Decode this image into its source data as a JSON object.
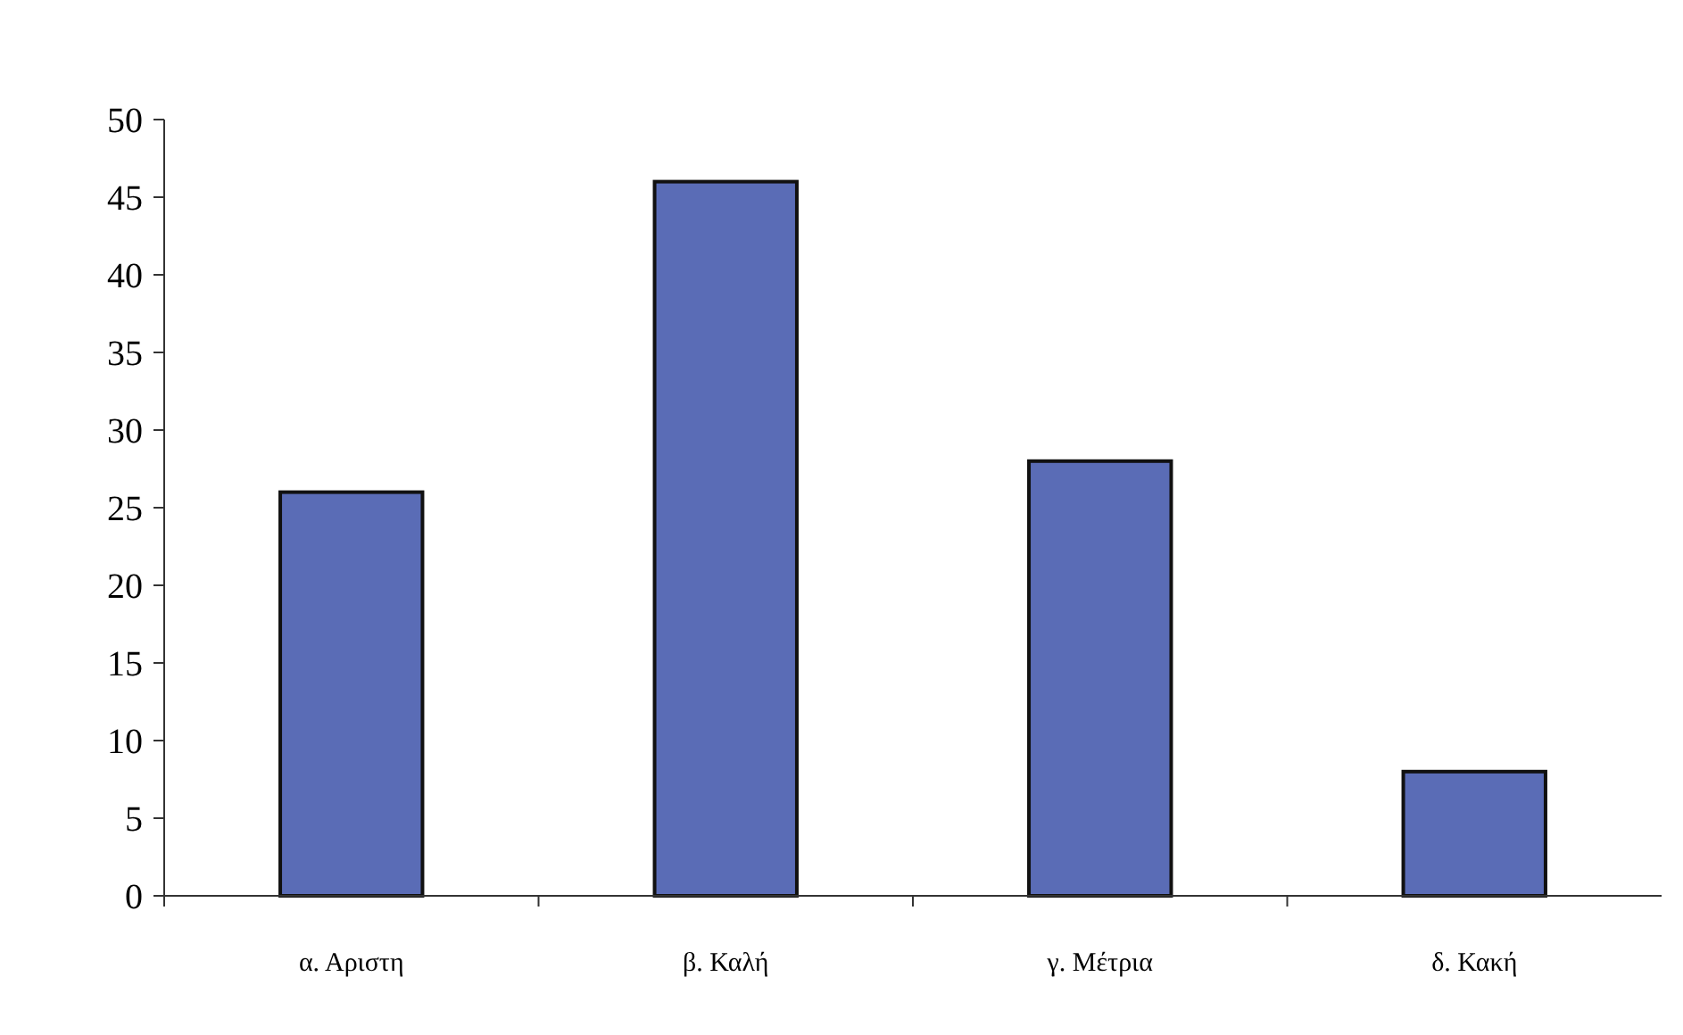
{
  "chart_data": {
    "type": "bar",
    "categories": [
      "α. Αριστη",
      "β. Καλή",
      "γ. Μέτρια",
      "δ. Κακή"
    ],
    "values": [
      26,
      46,
      28,
      8
    ],
    "color": "#5a6cb6",
    "ylim": [
      0,
      50
    ],
    "yticks": [
      0,
      5,
      10,
      15,
      20,
      25,
      30,
      35,
      40,
      45,
      50
    ],
    "grid": false
  }
}
